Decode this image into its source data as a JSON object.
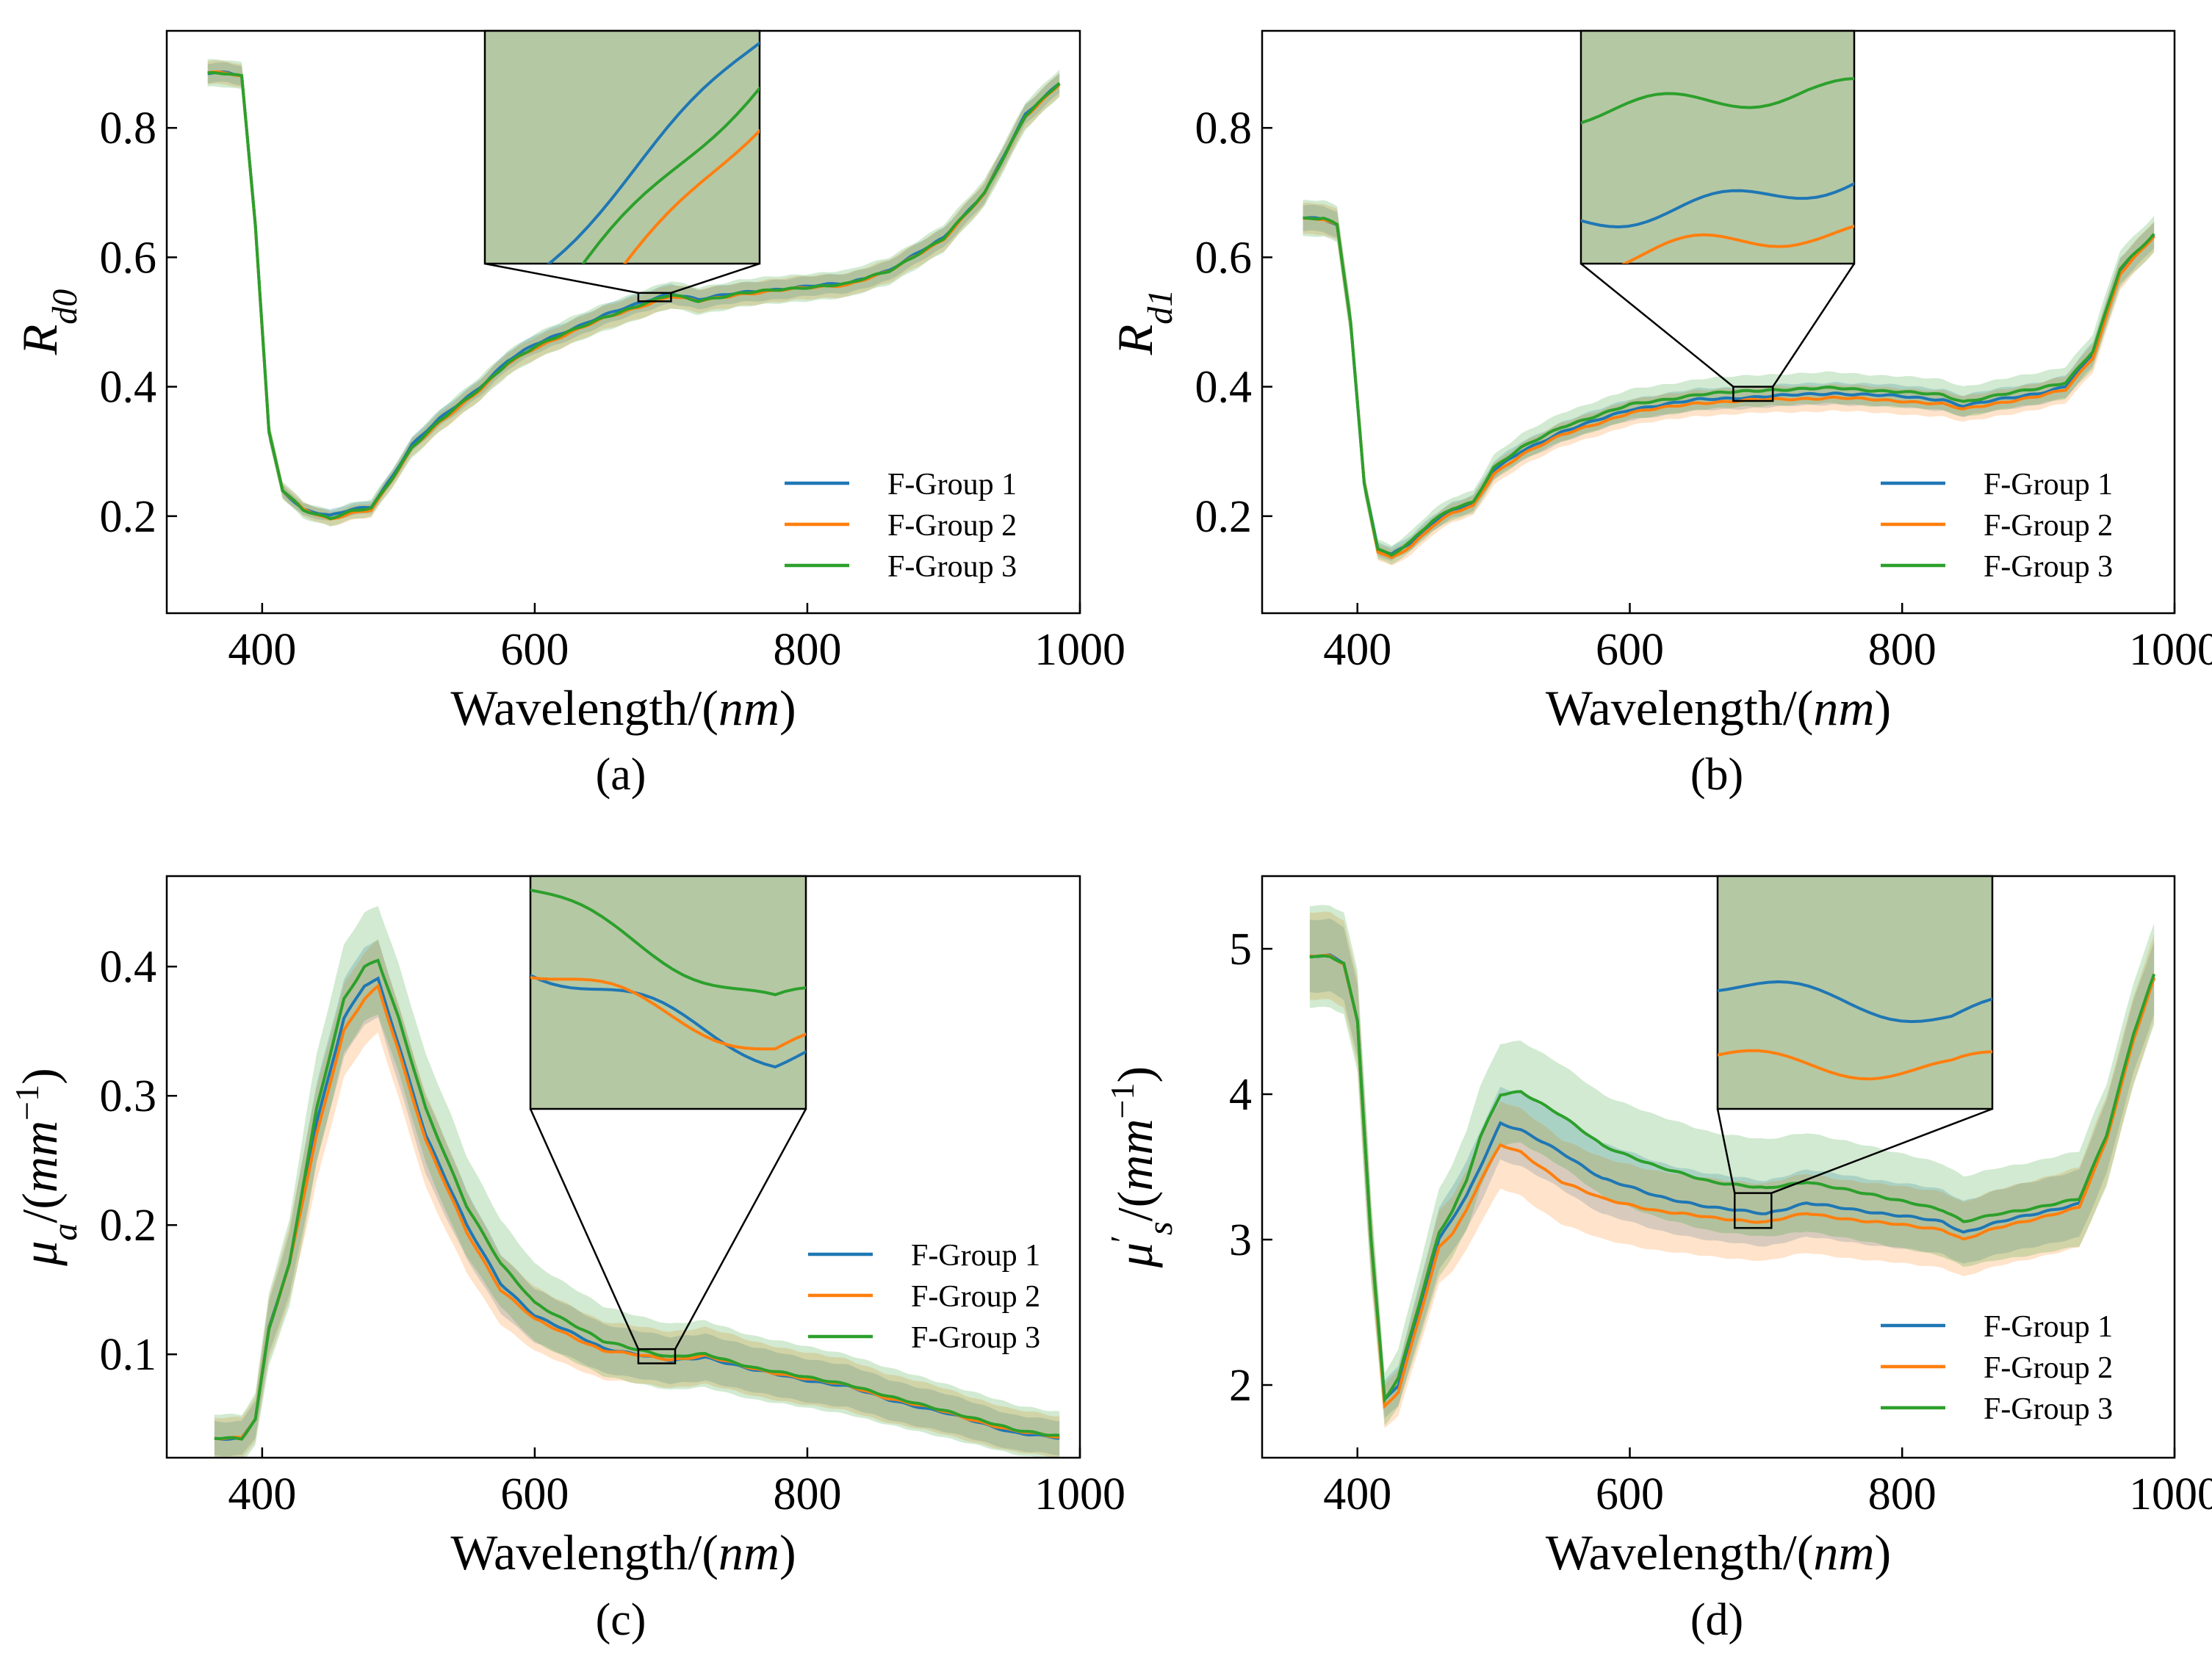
{
  "colors": {
    "F-Group 1": "#1f77b4",
    "F-Group 2": "#ff7f0e",
    "F-Group 3": "#2ca02c",
    "inset_fill": "#b5c8a4"
  },
  "x_axis_label": "Wavelength/(nm)",
  "chart_data": [
    {
      "id": "a",
      "caption": "(a)",
      "type": "line",
      "ylabel_html": "R<sub>d0</sub>",
      "ylabel_parts": [
        {
          "t": "R",
          "italic": true,
          "sub": false
        },
        {
          "t": "d0",
          "italic": true,
          "sub": true
        }
      ],
      "xlim": [
        330,
        1000
      ],
      "ylim": [
        0.05,
        0.95
      ],
      "xticks": [
        400,
        600,
        800,
        1000
      ],
      "yticks": [
        0.2,
        0.4,
        0.6,
        0.8
      ],
      "ytick_labels": [
        "0.2",
        "0.4",
        "0.6",
        "0.8"
      ],
      "band_width": 0.015,
      "x": [
        360,
        375,
        385,
        395,
        405,
        415,
        430,
        450,
        465,
        480,
        495,
        510,
        530,
        560,
        580,
        600,
        650,
        700,
        720,
        750,
        800,
        830,
        860,
        900,
        930,
        960,
        985
      ],
      "series": [
        {
          "name": "F-Group 1",
          "values": [
            0.885,
            0.885,
            0.88,
            0.65,
            0.33,
            0.24,
            0.21,
            0.2,
            0.21,
            0.215,
            0.26,
            0.31,
            0.35,
            0.4,
            0.44,
            0.465,
            0.51,
            0.545,
            0.535,
            0.545,
            0.555,
            0.56,
            0.58,
            0.63,
            0.7,
            0.82,
            0.87
          ]
        },
        {
          "name": "F-Group 2",
          "values": [
            0.885,
            0.885,
            0.88,
            0.65,
            0.33,
            0.24,
            0.21,
            0.195,
            0.205,
            0.21,
            0.255,
            0.305,
            0.345,
            0.395,
            0.435,
            0.46,
            0.505,
            0.54,
            0.532,
            0.543,
            0.553,
            0.558,
            0.578,
            0.628,
            0.698,
            0.818,
            0.868
          ]
        },
        {
          "name": "F-Group 3",
          "values": [
            0.885,
            0.885,
            0.88,
            0.65,
            0.33,
            0.24,
            0.21,
            0.197,
            0.207,
            0.212,
            0.257,
            0.307,
            0.347,
            0.397,
            0.437,
            0.462,
            0.507,
            0.542,
            0.533,
            0.544,
            0.554,
            0.559,
            0.579,
            0.629,
            0.699,
            0.819,
            0.869
          ]
        }
      ],
      "zoom_box": {
        "x": [
          676,
          700
        ],
        "y": [
          0.532,
          0.545
        ]
      },
      "legend_position": "lower-right"
    },
    {
      "id": "b",
      "caption": "(b)",
      "type": "line",
      "ylabel_parts": [
        {
          "t": "R",
          "italic": true,
          "sub": false
        },
        {
          "t": "d1",
          "italic": true,
          "sub": true
        }
      ],
      "xlim": [
        330,
        1000
      ],
      "ylim": [
        0.05,
        0.95
      ],
      "xticks": [
        400,
        600,
        800,
        1000
      ],
      "yticks": [
        0.2,
        0.4,
        0.6,
        0.8
      ],
      "ytick_labels": [
        "0.2",
        "0.4",
        "0.6",
        "0.8"
      ],
      "band_width": 0.02,
      "x": [
        360,
        375,
        385,
        395,
        405,
        415,
        425,
        440,
        455,
        470,
        485,
        500,
        520,
        550,
        600,
        650,
        700,
        750,
        800,
        830,
        845,
        870,
        900,
        920,
        940,
        960,
        985
      ],
      "series": [
        {
          "name": "F-Group 1",
          "values": [
            0.66,
            0.66,
            0.65,
            0.5,
            0.25,
            0.15,
            0.14,
            0.16,
            0.19,
            0.21,
            0.22,
            0.27,
            0.3,
            0.33,
            0.365,
            0.38,
            0.385,
            0.39,
            0.385,
            0.38,
            0.37,
            0.38,
            0.39,
            0.4,
            0.45,
            0.58,
            0.635
          ]
        },
        {
          "name": "F-Group 2",
          "values": [
            0.66,
            0.66,
            0.65,
            0.5,
            0.25,
            0.145,
            0.135,
            0.155,
            0.185,
            0.205,
            0.215,
            0.265,
            0.295,
            0.325,
            0.36,
            0.375,
            0.38,
            0.383,
            0.378,
            0.373,
            0.365,
            0.375,
            0.385,
            0.395,
            0.445,
            0.575,
            0.632
          ]
        },
        {
          "name": "F-Group 3",
          "values": [
            0.66,
            0.66,
            0.65,
            0.5,
            0.25,
            0.15,
            0.14,
            0.162,
            0.192,
            0.212,
            0.222,
            0.275,
            0.305,
            0.338,
            0.372,
            0.388,
            0.395,
            0.398,
            0.392,
            0.387,
            0.377,
            0.387,
            0.397,
            0.407,
            0.455,
            0.582,
            0.636
          ]
        }
      ],
      "zoom_box": {
        "x": [
          676,
          705
        ],
        "y": [
          0.378,
          0.4
        ]
      },
      "legend_position": "lower-right"
    },
    {
      "id": "c",
      "caption": "(c)",
      "type": "line",
      "ylabel_parts": [
        {
          "t": "μ",
          "italic": true,
          "sub": false
        },
        {
          "t": "a",
          "italic": true,
          "sub": true
        },
        {
          "t": "/(",
          "italic": false,
          "sub": false
        },
        {
          "t": "mm",
          "italic": true,
          "sub": false
        },
        {
          "t": "−1",
          "italic": false,
          "sup": true
        },
        {
          "t": ")",
          "italic": false,
          "sub": false
        }
      ],
      "xlim": [
        330,
        1000
      ],
      "ylim": [
        0.02,
        0.47
      ],
      "xticks": [
        400,
        600,
        800,
        1000
      ],
      "yticks": [
        0.1,
        0.2,
        0.3,
        0.4
      ],
      "ytick_labels": [
        "0.1",
        "0.2",
        "0.3",
        "0.4"
      ],
      "band_width": 0.03,
      "x": [
        365,
        385,
        395,
        405,
        420,
        440,
        460,
        475,
        485,
        500,
        520,
        550,
        575,
        600,
        650,
        700,
        725,
        760,
        800,
        830,
        860,
        900,
        950,
        985
      ],
      "series": [
        {
          "name": "F-Group 1",
          "values": [
            0.035,
            0.035,
            0.05,
            0.12,
            0.17,
            0.28,
            0.36,
            0.385,
            0.39,
            0.34,
            0.27,
            0.2,
            0.155,
            0.13,
            0.105,
            0.095,
            0.098,
            0.088,
            0.08,
            0.075,
            0.065,
            0.055,
            0.04,
            0.035
          ]
        },
        {
          "name": "F-Group 2",
          "values": [
            0.035,
            0.035,
            0.05,
            0.12,
            0.17,
            0.27,
            0.35,
            0.375,
            0.385,
            0.335,
            0.265,
            0.195,
            0.15,
            0.127,
            0.103,
            0.096,
            0.099,
            0.089,
            0.081,
            0.076,
            0.066,
            0.056,
            0.041,
            0.036
          ]
        },
        {
          "name": "F-Group 3",
          "values": [
            0.035,
            0.035,
            0.05,
            0.12,
            0.17,
            0.29,
            0.375,
            0.4,
            0.405,
            0.36,
            0.29,
            0.215,
            0.17,
            0.14,
            0.11,
            0.098,
            0.1,
            0.09,
            0.082,
            0.077,
            0.067,
            0.057,
            0.042,
            0.037
          ]
        }
      ],
      "zoom_box": {
        "x": [
          676,
          703
        ],
        "y": [
          0.093,
          0.104
        ]
      },
      "legend_position": "lower-right"
    },
    {
      "id": "d",
      "caption": "(d)",
      "type": "line",
      "ylabel_parts": [
        {
          "t": "μ",
          "italic": true,
          "sub": false
        },
        {
          "t": "′",
          "italic": false,
          "sup": true
        },
        {
          "t": "s",
          "italic": true,
          "sub": true
        },
        {
          "t": "/(",
          "italic": false,
          "sub": false
        },
        {
          "t": "mm",
          "italic": true,
          "sub": false
        },
        {
          "t": "−1",
          "italic": false,
          "sup": true
        },
        {
          "t": ")",
          "italic": false,
          "sub": false
        }
      ],
      "xlim": [
        330,
        1000
      ],
      "ylim": [
        1.5,
        5.5
      ],
      "xticks": [
        400,
        600,
        800,
        1000
      ],
      "yticks": [
        2,
        3,
        4,
        5
      ],
      "ytick_labels": [
        "2",
        "3",
        "4",
        "5"
      ],
      "band_width": 0.25,
      "x": [
        365,
        380,
        390,
        400,
        410,
        420,
        430,
        445,
        460,
        470,
        480,
        490,
        505,
        520,
        550,
        580,
        620,
        660,
        700,
        730,
        770,
        810,
        830,
        845,
        870,
        900,
        930,
        950,
        970,
        985
      ],
      "series": [
        {
          "name": "F-Group 1",
          "values": [
            4.95,
            4.95,
            4.9,
            4.5,
            3.0,
            1.9,
            2.0,
            2.5,
            3.0,
            3.15,
            3.3,
            3.5,
            3.8,
            3.75,
            3.6,
            3.42,
            3.3,
            3.22,
            3.18,
            3.25,
            3.2,
            3.15,
            3.12,
            3.05,
            3.12,
            3.18,
            3.25,
            3.7,
            4.4,
            4.8
          ]
        },
        {
          "name": "F-Group 2",
          "values": [
            4.95,
            4.95,
            4.9,
            4.5,
            3.0,
            1.85,
            1.95,
            2.45,
            2.95,
            3.05,
            3.2,
            3.4,
            3.65,
            3.6,
            3.4,
            3.28,
            3.2,
            3.15,
            3.12,
            3.18,
            3.13,
            3.09,
            3.07,
            3.0,
            3.08,
            3.15,
            3.22,
            3.68,
            4.38,
            4.8
          ]
        },
        {
          "name": "F-Group 3",
          "values": [
            4.95,
            4.95,
            4.9,
            4.5,
            3.0,
            1.9,
            2.05,
            2.55,
            3.05,
            3.2,
            3.4,
            3.7,
            4.0,
            4.02,
            3.85,
            3.65,
            3.5,
            3.4,
            3.35,
            3.4,
            3.32,
            3.25,
            3.2,
            3.12,
            3.18,
            3.22,
            3.28,
            3.72,
            4.42,
            4.82
          ]
        }
      ],
      "zoom_box": {
        "x": [
          677,
          704
        ],
        "y": [
          3.08,
          3.32
        ]
      },
      "legend_position": "lower-right"
    }
  ]
}
